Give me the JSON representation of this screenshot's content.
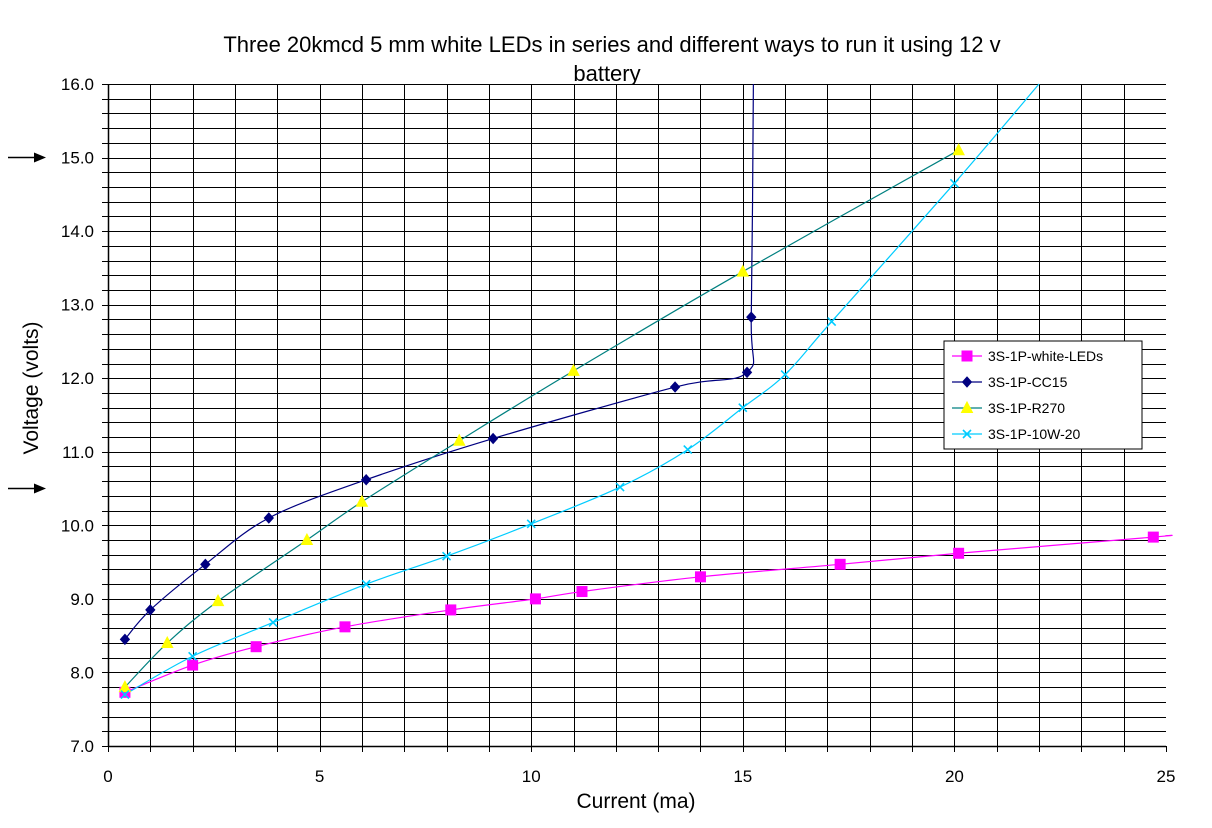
{
  "chart_data": {
    "type": "line",
    "title_line1": "Three 20kmcd 5 mm white LEDs in series and different ways to run it using 12 v",
    "title_line2": "battery",
    "xlabel": "Current (ma)",
    "ylabel": "Voltage (volts)",
    "xlim": [
      0,
      25
    ],
    "ylim": [
      7.0,
      16.0
    ],
    "x_ticks": [
      "0",
      "5",
      "10",
      "15",
      "20",
      "25"
    ],
    "y_ticks": [
      "7.0",
      "8.0",
      "9.0",
      "10.0",
      "11.0",
      "12.0",
      "13.0",
      "14.0",
      "15.0",
      "16.0"
    ],
    "grid": true,
    "legend_position": "right",
    "arrow_markers_at_voltage": [
      15.0,
      10.5
    ],
    "series": [
      {
        "name": "3S-1P-white-LEDs",
        "color": "#ff00ff",
        "marker": "square",
        "x": [
          0.4,
          2.0,
          3.5,
          5.6,
          8.1,
          10.1,
          11.2,
          14.0,
          17.3,
          20.1,
          24.7
        ],
        "y": [
          7.73,
          8.1,
          8.35,
          8.62,
          8.85,
          9.0,
          9.1,
          9.3,
          9.47,
          9.62,
          9.84
        ],
        "line_extend_to": [
          25.0,
          9.86
        ]
      },
      {
        "name": "3S-1P-CC15",
        "color": "#000080",
        "marker": "diamond",
        "x": [
          0.4,
          1.0,
          2.3,
          3.8,
          6.1,
          9.1,
          13.4,
          15.1,
          15.2
        ],
        "y": [
          8.45,
          8.85,
          9.47,
          10.1,
          10.62,
          11.18,
          11.88,
          12.08,
          12.83
        ],
        "line_extend_to": [
          15.25,
          16.0
        ]
      },
      {
        "name": "3S-1P-R270",
        "color": "#ffff00",
        "line_color": "#008080",
        "marker": "triangle",
        "x": [
          0.4,
          1.4,
          2.6,
          4.7,
          6.0,
          8.3,
          11.0,
          15.0,
          20.1
        ],
        "y": [
          7.8,
          8.4,
          8.97,
          9.8,
          10.32,
          11.15,
          12.1,
          13.45,
          15.1
        ]
      },
      {
        "name": "3S-1P-10W-20",
        "color": "#00ccff",
        "marker": "x",
        "x": [
          0.4,
          2.0,
          3.9,
          6.1,
          8.0,
          10.0,
          12.1,
          13.7,
          15.0,
          16.0,
          17.1,
          20.0
        ],
        "y": [
          7.7,
          8.22,
          8.68,
          9.2,
          9.58,
          10.02,
          10.52,
          11.03,
          11.6,
          12.05,
          12.77,
          14.65
        ],
        "line_extend_to": [
          22.0,
          16.0
        ]
      }
    ]
  }
}
